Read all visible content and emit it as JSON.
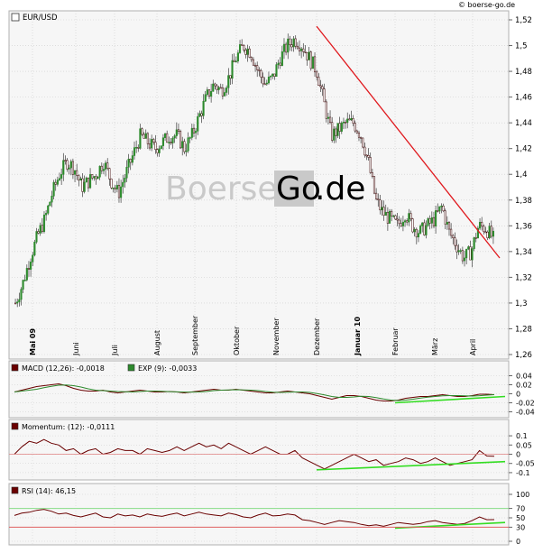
{
  "watermark_top": "© boerse-go.de",
  "watermark_center": {
    "part1": "Boerse",
    "part2": "Go",
    "part3": ".de"
  },
  "colors": {
    "candle_up": "#2d8a2d",
    "candle_down": "#3a0000",
    "trendline": "#e0191e",
    "support": "#33dd22",
    "macd": "#6a0000",
    "signal": "#2d8a2d",
    "rsi70": "#88dd88",
    "rsi30": "#e06060",
    "grid": "#cccccc"
  },
  "chart_data": [
    {
      "type": "candlestick",
      "title": "EUR/USD",
      "legend": {
        "label": "EUR/USD",
        "color": "#ffffff"
      },
      "x_labels": [
        "Mai 09",
        "Juni",
        "Juli",
        "August",
        "September",
        "Oktober",
        "November",
        "Dezember",
        "Januar 10",
        "Februar",
        "März",
        "April"
      ],
      "x_label_bold": [
        true,
        false,
        false,
        false,
        false,
        false,
        false,
        false,
        true,
        false,
        false,
        false
      ],
      "y_ticks": [
        "1,52",
        "1,5",
        "1,48",
        "1,46",
        "1,44",
        "1,42",
        "1,4",
        "1,38",
        "1,36",
        "1,34",
        "1,32",
        "1,3",
        "1,28",
        "1,26"
      ],
      "ylim": [
        1.26,
        1.52
      ],
      "grid": true,
      "weekly_closes": [
        1.3,
        1.315,
        1.335,
        1.352,
        1.365,
        1.385,
        1.4,
        1.41,
        1.405,
        1.39,
        1.395,
        1.4,
        1.41,
        1.395,
        1.385,
        1.4,
        1.415,
        1.43,
        1.425,
        1.42,
        1.425,
        1.43,
        1.43,
        1.42,
        1.43,
        1.445,
        1.46,
        1.47,
        1.465,
        1.475,
        1.49,
        1.5,
        1.495,
        1.48,
        1.47,
        1.475,
        1.49,
        1.5,
        1.505,
        1.5,
        1.49,
        1.48,
        1.455,
        1.43,
        1.435,
        1.44,
        1.44,
        1.43,
        1.41,
        1.38,
        1.37,
        1.365,
        1.36,
        1.37,
        1.36,
        1.355,
        1.36,
        1.365,
        1.375,
        1.355,
        1.345,
        1.335,
        1.34,
        1.36,
        1.358,
        1.35
      ],
      "trendline": {
        "from": {
          "x": "Dezember",
          "y": 1.515
        },
        "to": {
          "x": "April",
          "y": 1.335
        }
      }
    },
    {
      "type": "line",
      "title": "MACD",
      "legend": [
        {
          "label": "MACD (12,26): -0,0018",
          "color": "#6a0000"
        },
        {
          "label": "EXP (9): -0,0033",
          "color": "#2d8a2d"
        }
      ],
      "y_ticks": [
        "0.04",
        "0.02",
        "0",
        "-0.02",
        "-0.04"
      ],
      "ylim": [
        -0.045,
        0.045
      ],
      "macd_weekly": [
        0.004,
        0.008,
        0.012,
        0.016,
        0.018,
        0.02,
        0.022,
        0.018,
        0.012,
        0.008,
        0.006,
        0.006,
        0.008,
        0.004,
        0.002,
        0.004,
        0.006,
        0.008,
        0.006,
        0.004,
        0.004,
        0.005,
        0.004,
        0.002,
        0.004,
        0.006,
        0.008,
        0.01,
        0.008,
        0.008,
        0.01,
        0.008,
        0.006,
        0.004,
        0.002,
        0.002,
        0.004,
        0.006,
        0.004,
        0.002,
        0.0,
        -0.004,
        -0.008,
        -0.012,
        -0.008,
        -0.004,
        -0.004,
        -0.006,
        -0.01,
        -0.014,
        -0.016,
        -0.016,
        -0.014,
        -0.01,
        -0.008,
        -0.006,
        -0.006,
        -0.004,
        -0.002,
        -0.004,
        -0.006,
        -0.006,
        -0.004,
        -0.001,
        -0.001,
        -0.002
      ],
      "support": {
        "from": {
          "x": "Februar",
          "y": -0.02
        },
        "to": {
          "x": "April",
          "y": -0.006
        }
      }
    },
    {
      "type": "line",
      "title": "Momentum",
      "legend": [
        {
          "label": "Momentum: (12): -0,0111",
          "color": "#6a0000"
        }
      ],
      "y_ticks": [
        "0.1",
        "0.05",
        "0",
        "-0.05",
        "-0.1"
      ],
      "ylim": [
        -0.12,
        0.12
      ],
      "momentum_weekly": [
        0.0,
        0.04,
        0.07,
        0.06,
        0.08,
        0.06,
        0.05,
        0.02,
        0.03,
        0.0,
        0.02,
        0.03,
        0.0,
        0.01,
        0.03,
        0.02,
        0.02,
        0.0,
        0.03,
        0.02,
        0.01,
        0.02,
        0.04,
        0.02,
        0.04,
        0.06,
        0.04,
        0.05,
        0.03,
        0.06,
        0.04,
        0.02,
        0.0,
        0.02,
        0.04,
        0.02,
        0.0,
        0.0,
        0.02,
        -0.02,
        -0.04,
        -0.06,
        -0.08,
        -0.06,
        -0.04,
        -0.02,
        0.0,
        -0.02,
        -0.04,
        -0.03,
        -0.06,
        -0.05,
        -0.04,
        -0.02,
        -0.03,
        -0.05,
        -0.04,
        -0.02,
        -0.04,
        -0.06,
        -0.05,
        -0.04,
        -0.03,
        0.02,
        -0.01,
        -0.011
      ],
      "support": {
        "from": {
          "x": "Dezember",
          "y": -0.085
        },
        "to": {
          "x": "April",
          "y": -0.04
        }
      }
    },
    {
      "type": "line",
      "title": "RSI",
      "legend": [
        {
          "label": "RSI (14): 46,15",
          "color": "#6a0000"
        }
      ],
      "y_ticks": [
        "100",
        "70",
        "50",
        "30",
        "0"
      ],
      "ylim": [
        0,
        100
      ],
      "levels": [
        70,
        30
      ],
      "rsi_weekly": [
        55,
        60,
        62,
        66,
        68,
        64,
        58,
        60,
        55,
        52,
        56,
        60,
        52,
        50,
        58,
        54,
        56,
        52,
        58,
        55,
        53,
        57,
        60,
        54,
        58,
        62,
        58,
        56,
        54,
        60,
        57,
        52,
        50,
        56,
        60,
        54,
        55,
        58,
        56,
        46,
        44,
        40,
        36,
        40,
        44,
        42,
        40,
        36,
        33,
        35,
        32,
        36,
        40,
        38,
        36,
        38,
        42,
        44,
        40,
        38,
        36,
        38,
        44,
        52,
        46,
        46.15
      ],
      "support": {
        "from": {
          "x": "Februar",
          "y": 28
        },
        "to": {
          "x": "April",
          "y": 40
        }
      }
    }
  ]
}
